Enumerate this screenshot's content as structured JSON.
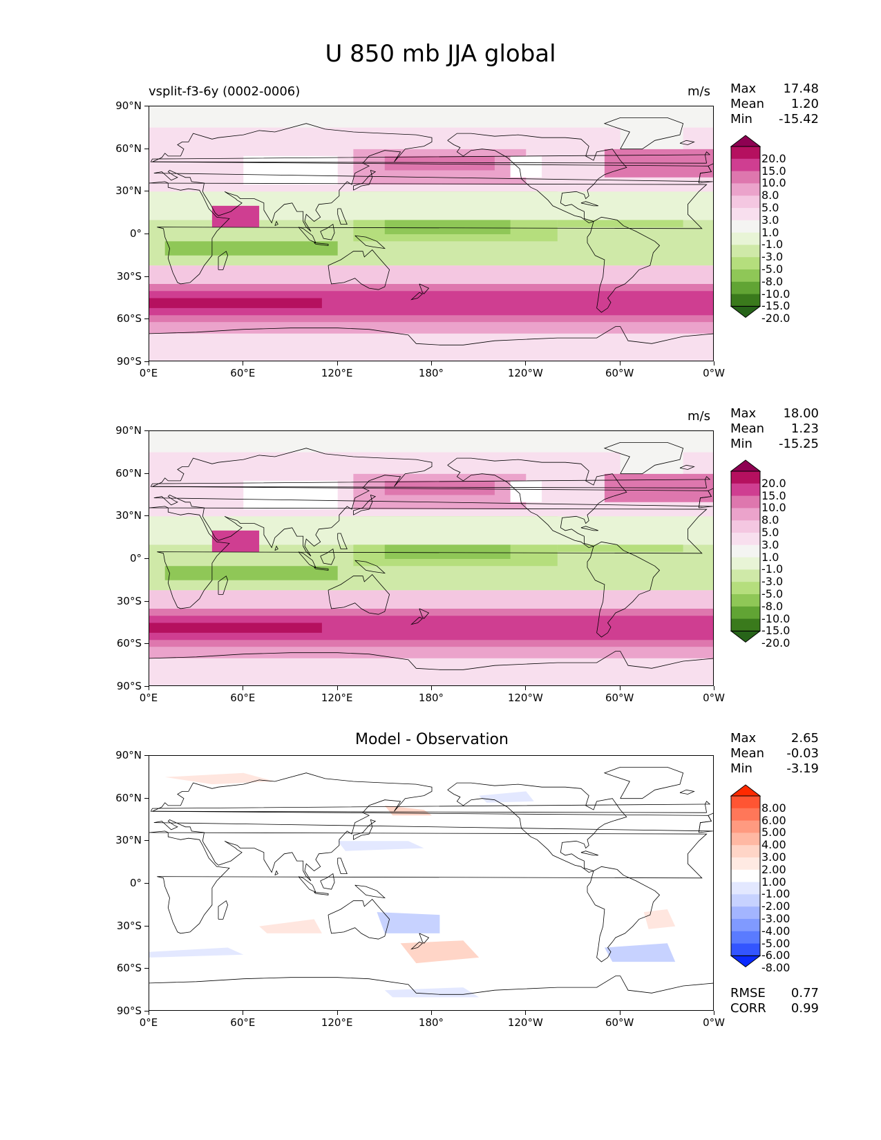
{
  "title": "U 850 mb JJA global",
  "panels": [
    {
      "left_title": "vsplit-f3-6y (0002-0006)",
      "center_title": "",
      "units": "m/s",
      "stats": [
        {
          "label": "Max",
          "value": "17.48"
        },
        {
          "label": "Mean",
          "value": "1.20"
        },
        {
          "label": "Min",
          "value": "-15.42"
        }
      ],
      "colorbar": {
        "labels": [
          "20.0",
          "15.0",
          "10.0",
          "8.0",
          "5.0",
          "3.0",
          "1.0",
          "-1.0",
          "-3.0",
          "-5.0",
          "-8.0",
          "-10.0",
          "-15.0",
          "-20.0"
        ],
        "colors": [
          "#8e0152",
          "#b5105f",
          "#cf3e91",
          "#de77ae",
          "#eba3cb",
          "#f4c7e1",
          "#f8dfee",
          "#f4f4f2",
          "#e8f4d6",
          "#cfe9a8",
          "#b5de7d",
          "#8fc757",
          "#61a434",
          "#3a7a1c",
          "#276419"
        ]
      },
      "field": "model"
    },
    {
      "left_title": "",
      "center_title": "",
      "units": "m/s",
      "stats": [
        {
          "label": "Max",
          "value": "18.00"
        },
        {
          "label": "Mean",
          "value": "1.23"
        },
        {
          "label": "Min",
          "value": "-15.25"
        }
      ],
      "colorbar": {
        "labels": [
          "20.0",
          "15.0",
          "10.0",
          "8.0",
          "5.0",
          "3.0",
          "1.0",
          "-1.0",
          "-3.0",
          "-5.0",
          "-8.0",
          "-10.0",
          "-15.0",
          "-20.0"
        ],
        "colors": [
          "#8e0152",
          "#b5105f",
          "#cf3e91",
          "#de77ae",
          "#eba3cb",
          "#f4c7e1",
          "#f8dfee",
          "#f4f4f2",
          "#e8f4d6",
          "#cfe9a8",
          "#b5de7d",
          "#8fc757",
          "#61a434",
          "#3a7a1c",
          "#276419"
        ]
      },
      "field": "obs"
    },
    {
      "left_title": "",
      "center_title": "Model - Observation",
      "units": "",
      "stats": [
        {
          "label": "Max",
          "value": "2.65"
        },
        {
          "label": "Mean",
          "value": "-0.03"
        },
        {
          "label": "Min",
          "value": "-3.19"
        }
      ],
      "colorbar": {
        "labels": [
          "8.00",
          "6.00",
          "5.00",
          "4.00",
          "3.00",
          "2.00",
          "1.00",
          "-1.00",
          "-2.00",
          "-3.00",
          "-4.00",
          "-5.00",
          "-6.00",
          "-8.00"
        ],
        "colors": [
          "#ff2a00",
          "#ff5533",
          "#ff7759",
          "#ff9a80",
          "#ffb8a3",
          "#ffd5c7",
          "#ffeae3",
          "#ffffff",
          "#e3e8ff",
          "#c7d2ff",
          "#a3b5ff",
          "#809aff",
          "#5a7bff",
          "#3355ff",
          "#0a2aff"
        ]
      },
      "extra_stats": [
        {
          "label": "RMSE",
          "value": "0.77"
        },
        {
          "label": "CORR",
          "value": "0.99"
        }
      ],
      "field": "diff"
    }
  ],
  "axes": {
    "x_ticks": [
      "0°E",
      "60°E",
      "120°E",
      "180°",
      "120°W",
      "60°W",
      "0°W"
    ],
    "y_ticks": [
      "90°N",
      "60°N",
      "30°N",
      "0°",
      "30°S",
      "60°S",
      "90°S"
    ]
  }
}
